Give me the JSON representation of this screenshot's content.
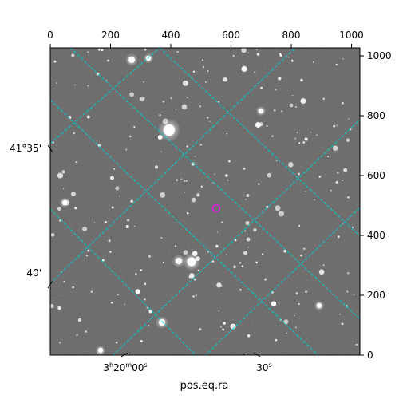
{
  "axes": {
    "top_ticks": [
      "0",
      "200",
      "400",
      "600",
      "800",
      "1000"
    ],
    "right_ticks": [
      "0",
      "200",
      "400",
      "600",
      "800",
      "1000"
    ],
    "left_ticks": [
      "41°35'",
      "40'"
    ],
    "bottom_ticks": [
      "3h20m00s",
      "30s"
    ],
    "bottom_tick_parts": {
      "first": {
        "h": "3",
        "h_unit": "h",
        "m": "20",
        "m_unit": "m",
        "s": "00",
        "s_unit": "s"
      },
      "second": {
        "s": "30",
        "s_unit": "s"
      }
    },
    "xlabel": "pos.eq.ra"
  },
  "colors": {
    "grid": "#00cccc",
    "marker": "#ff00ff",
    "frame": "#000000",
    "sky_background": "#5f5f5f"
  },
  "image": {
    "description_icon": "astronomical-star-field-grayscale",
    "pixel_range": [
      0,
      1030
    ],
    "marker_pixel": [
      555,
      488
    ]
  }
}
